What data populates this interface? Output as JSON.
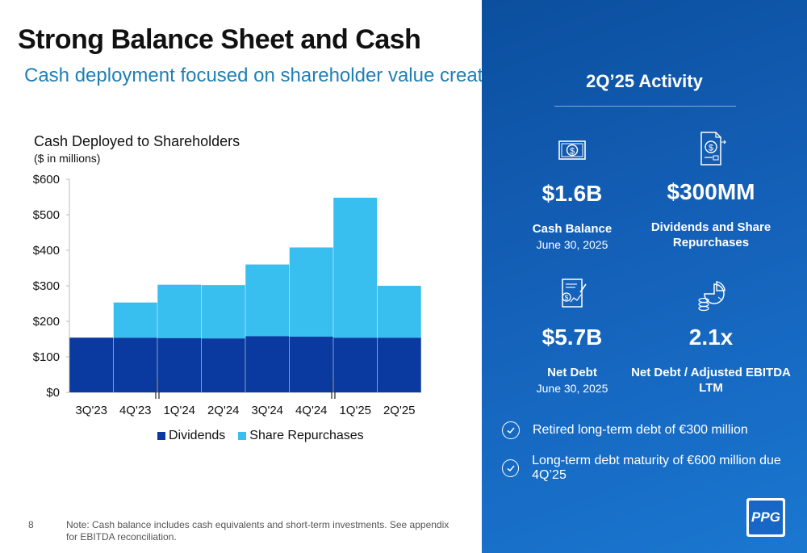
{
  "slide": {
    "title": "Strong Balance Sheet and Cash",
    "subtitle": "Cash deployment focused on shareholder value creation",
    "page_number": "8",
    "note": "Note: Cash balance includes cash equivalents and short-term investments. See appendix for EBITDA reconciliation."
  },
  "chart_data": {
    "type": "bar",
    "stacked": true,
    "title": "Cash Deployed to Shareholders",
    "subtitle": "($ in millions)",
    "categories": [
      "3Q'23",
      "4Q'23",
      "1Q'24",
      "2Q'24",
      "3Q'24",
      "4Q'24",
      "1Q'25",
      "2Q'25"
    ],
    "series": [
      {
        "name": "Dividends",
        "color": "#0a3aa0",
        "values": [
          154,
          154,
          153,
          152,
          158,
          157,
          154,
          154
        ]
      },
      {
        "name": "Share Repurchases",
        "color": "#38bff0",
        "values": [
          0,
          99,
          150,
          150,
          202,
          251,
          394,
          146
        ]
      }
    ],
    "ylim": [
      0,
      600
    ],
    "yticks": [
      0,
      100,
      200,
      300,
      400,
      500,
      600
    ],
    "ytick_labels": [
      "$0",
      "$100",
      "$200",
      "$300",
      "$400",
      "$500",
      "$600"
    ],
    "year_breaks_after": [
      "4Q'23",
      "4Q'24"
    ],
    "legend_position": "bottom",
    "grid": false
  },
  "panel": {
    "heading": "2Q’25 Activity",
    "stats": [
      {
        "value": "$1.6B",
        "label": "Cash Balance",
        "date": "June 30, 2025",
        "icon": "cash-icon"
      },
      {
        "value": "$300MM",
        "label": "Dividends and Share Repurchases",
        "date": "",
        "icon": "invoice-dollar-icon"
      },
      {
        "value": "$5.7B",
        "label": "Net Debt",
        "date": "June 30, 2025",
        "icon": "document-dollar-icon"
      },
      {
        "value": "2.1x",
        "label": "Net Debt / Adjusted EBITDA LTM",
        "date": "",
        "icon": "coins-pie-icon"
      }
    ],
    "bullets": [
      "Retired long-term debt of €300 million",
      "Long-term debt maturity of €600 million due 4Q’25"
    ],
    "logo_text": "PPG"
  }
}
